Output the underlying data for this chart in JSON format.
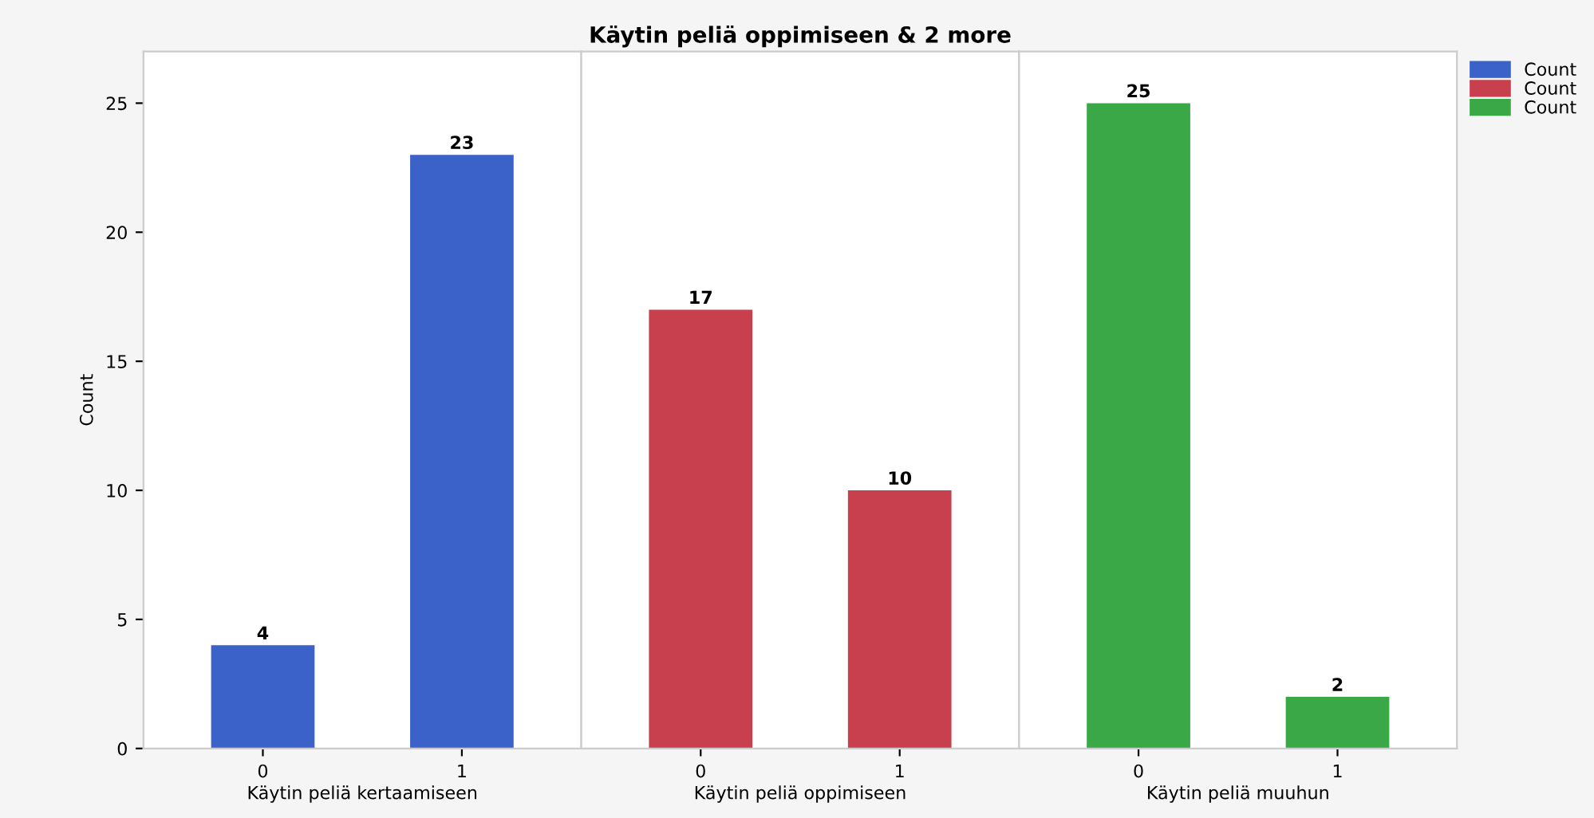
{
  "chart_data": [
    {
      "type": "bar",
      "ylabel": "Count",
      "xlabel": "Käytin peliä kertaamiseen",
      "categories": [
        "0",
        "1"
      ],
      "series": [
        {
          "name": "Count",
          "color": "#3a62c8",
          "values": [
            4,
            23
          ]
        }
      ],
      "ylim": [
        0,
        27
      ],
      "yticks": [
        0,
        5,
        10,
        15,
        20,
        25
      ],
      "data_labels": true
    },
    {
      "type": "bar",
      "title": "Käytin peliä oppimiseen & 2 more",
      "xlabel": "Käytin peliä oppimiseen",
      "categories": [
        "0",
        "1"
      ],
      "series": [
        {
          "name": "Count",
          "color": "#c8404e",
          "values": [
            17,
            10
          ]
        }
      ],
      "ylim": [
        0,
        27
      ],
      "tick_labels": "x",
      "data_labels": true
    },
    {
      "type": "bar",
      "xlabel": "Käytin peliä muuhun",
      "categories": [
        "0",
        "1"
      ],
      "series": [
        {
          "name": "Count",
          "color": "#3aa847",
          "values": [
            25,
            2
          ]
        }
      ],
      "ylim": [
        0,
        27
      ],
      "tick_labels": "x",
      "data_labels": true,
      "legend": "top right"
    }
  ]
}
